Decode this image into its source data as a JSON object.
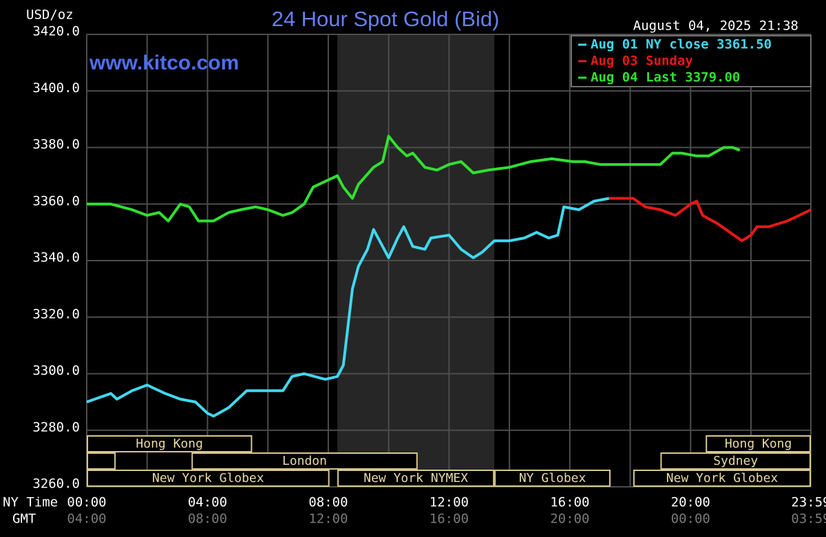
{
  "chart_data": {
    "type": "line",
    "title": "24 Hour Spot Gold (Bid)",
    "y_axis_label": "USD/oz",
    "watermark": "www.kitco.com",
    "timestamp": "August 04, 2025 21:38",
    "x_axis_label": "NY Time",
    "x2_axis_label": "GMT",
    "xlim": [
      0,
      23.983
    ],
    "xticks": [
      {
        "value": 0,
        "label": "00:00"
      },
      {
        "value": 4,
        "label": "04:00"
      },
      {
        "value": 8,
        "label": "08:00"
      },
      {
        "value": 12,
        "label": "12:00"
      },
      {
        "value": 16,
        "label": "16:00"
      },
      {
        "value": 20,
        "label": "20:00"
      },
      {
        "value": 23.983,
        "label": "23:59"
      }
    ],
    "x2ticks": [
      {
        "value": 0,
        "label": "04:00"
      },
      {
        "value": 4,
        "label": "08:00"
      },
      {
        "value": 8,
        "label": "12:00"
      },
      {
        "value": 12,
        "label": "16:00"
      },
      {
        "value": 16,
        "label": "20:00"
      },
      {
        "value": 20,
        "label": "00:00"
      },
      {
        "value": 23.983,
        "label": "03:59"
      }
    ],
    "xgrid": [
      0,
      2,
      4,
      6,
      8,
      10,
      12,
      14,
      16,
      18,
      20,
      22,
      23.983
    ],
    "ylim": [
      3260,
      3420
    ],
    "yticks": [
      {
        "value": 3260,
        "label": "3260.0"
      },
      {
        "value": 3280,
        "label": "3280.0"
      },
      {
        "value": 3300,
        "label": "3300.0"
      },
      {
        "value": 3320,
        "label": "3320.0"
      },
      {
        "value": 3340,
        "label": "3340.0"
      },
      {
        "value": 3360,
        "label": "3360.0"
      },
      {
        "value": 3380,
        "label": "3380.0"
      },
      {
        "value": 3400,
        "label": "3400.0"
      },
      {
        "value": 3420,
        "label": "3420.0"
      }
    ],
    "grid": true,
    "legend": "top-right",
    "shaded_region": [
      8.3,
      13.5
    ],
    "series": [
      {
        "name": "Aug 01 NY close 3361.50",
        "color": "#40d8f0",
        "x": [
          0,
          0.8,
          1.0,
          1.5,
          2.0,
          2.6,
          3.1,
          3.6,
          4.0,
          4.2,
          4.7,
          5.3,
          6.0,
          6.5,
          6.8,
          7.2,
          7.9,
          8.3,
          8.5,
          8.8,
          9.0,
          9.3,
          9.5,
          9.8,
          10.0,
          10.3,
          10.5,
          10.8,
          11.2,
          11.4,
          12.0,
          12.4,
          12.8,
          13.1,
          13.5,
          14.0,
          14.5,
          14.9,
          15.3,
          15.6,
          15.8,
          16.3,
          16.8,
          17.3
        ],
        "values": [
          3290,
          3293,
          3291,
          3294,
          3296,
          3293,
          3291,
          3290,
          3286,
          3285,
          3288,
          3294,
          3294,
          3294,
          3299,
          3300,
          3298,
          3299,
          3303,
          3330,
          3338,
          3344,
          3351,
          3345,
          3341,
          3348,
          3352,
          3345,
          3344,
          3348,
          3349,
          3344,
          3341,
          3343,
          3347,
          3347,
          3348,
          3350,
          3348,
          3349,
          3359,
          3358,
          3361,
          3362
        ]
      },
      {
        "name": "Aug 03 Sunday",
        "color": "#e81818",
        "x": [
          17.3,
          17.7,
          18.1,
          18.5,
          19.0,
          19.5,
          20.0,
          20.2,
          20.4,
          20.9,
          21.3,
          21.7,
          22.0,
          22.2,
          22.6,
          23.2,
          23.6,
          23.983
        ],
        "values": [
          3362,
          3362,
          3362,
          3359,
          3358,
          3356,
          3360,
          3361,
          3356,
          3353,
          3350,
          3347,
          3349,
          3352,
          3352,
          3354,
          3356,
          3358
        ]
      },
      {
        "name": "Aug 04 Last 3379.00",
        "color": "#30e030",
        "x": [
          0,
          0.8,
          1.5,
          2.0,
          2.4,
          2.7,
          3.1,
          3.4,
          3.7,
          4.2,
          4.7,
          5.1,
          5.6,
          6.0,
          6.5,
          6.8,
          7.2,
          7.5,
          7.9,
          8.3,
          8.5,
          8.8,
          9.0,
          9.5,
          9.8,
          10.0,
          10.3,
          10.6,
          10.8,
          11.2,
          11.6,
          12.0,
          12.4,
          12.8,
          13.3,
          14.0,
          14.7,
          15.4,
          16.1,
          16.5,
          17.0,
          18.1,
          19.0,
          19.4,
          19.7,
          20.2,
          20.6,
          21.1,
          21.4,
          21.63
        ],
        "values": [
          3360,
          3360,
          3358,
          3356,
          3357,
          3354,
          3360,
          3359,
          3354,
          3354,
          3357,
          3358,
          3359,
          3358,
          3356,
          3357,
          3360,
          3366,
          3368,
          3370,
          3366,
          3362,
          3367,
          3373,
          3375,
          3384,
          3380,
          3377,
          3378,
          3373,
          3372,
          3374,
          3375,
          3371,
          3372,
          3373,
          3375,
          3376,
          3375,
          3375,
          3374,
          3374,
          3374,
          3378,
          3378,
          3377,
          3377,
          3380,
          3380,
          3379
        ]
      }
    ],
    "sessions": [
      {
        "label": "Hong Kong",
        "row": 0,
        "start": 0,
        "end": 5.48
      },
      {
        "label": "Hong Kong",
        "row": 0,
        "start": 20.5,
        "end": 23.983
      },
      {
        "label": null,
        "row": 1,
        "start": 0,
        "end": 0.96
      },
      {
        "label": "London",
        "row": 1,
        "start": 3.47,
        "end": 10.96
      },
      {
        "label": "Sydney",
        "row": 1,
        "start": 19.0,
        "end": 23.983
      },
      {
        "label": "New York Globex",
        "row": 2,
        "start": 0,
        "end": 8.04
      },
      {
        "label": "New York NYMEX",
        "row": 2,
        "start": 8.3,
        "end": 13.5
      },
      {
        "label": "NY Globex",
        "row": 2,
        "start": 13.5,
        "end": 17.35
      },
      {
        "label": "New York Globex",
        "row": 2,
        "start": 18.1,
        "end": 23.983
      }
    ]
  }
}
